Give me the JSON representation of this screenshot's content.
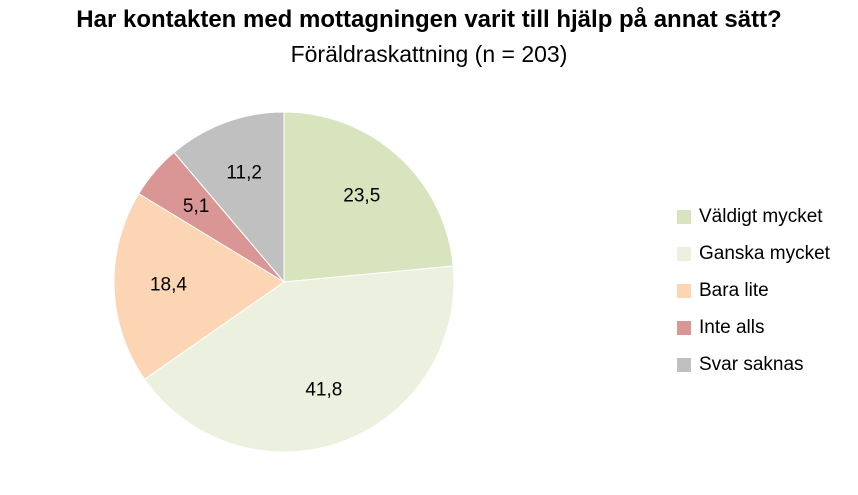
{
  "chart_data": {
    "type": "pie",
    "title": "Har kontakten med mottagningen varit till hjälp på annat sätt?",
    "subtitle": "Föräldraskattning (n = 203)",
    "categories": [
      "Väldigt mycket",
      "Ganska mycket",
      "Bara lite",
      "Inte alls",
      "Svar saknas"
    ],
    "values": [
      23.5,
      41.8,
      18.4,
      5.1,
      11.2
    ],
    "value_labels": [
      "23,5",
      "41,8",
      "18,4",
      "5,1",
      "11,2"
    ],
    "colors": [
      "#d7e4bd",
      "#ebf1de",
      "#fcd5b5",
      "#d99694",
      "#c0c0c0"
    ],
    "legend_position": "right"
  }
}
